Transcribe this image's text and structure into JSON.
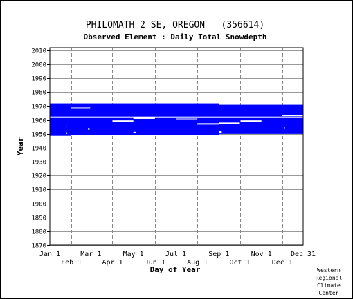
{
  "chart_data": {
    "type": "heatmap",
    "title": "PHILOMATH 2 SE, OREGON   (356614)",
    "subtitle": "Observed Element : Daily Total Snowdepth",
    "xlabel": "Day of Year",
    "ylabel": "Year",
    "xlim": [
      1,
      365
    ],
    "ylim": [
      1870,
      2012
    ],
    "yticks": [
      1870,
      1880,
      1890,
      1900,
      1910,
      1920,
      1930,
      1940,
      1950,
      1960,
      1970,
      1980,
      1990,
      2000,
      2010
    ],
    "xticks_upper": [
      {
        "label": "Jan 1",
        "day": 1
      },
      {
        "label": "Mar 1",
        "day": 60
      },
      {
        "label": "May 1",
        "day": 121
      },
      {
        "label": "Jul 1",
        "day": 182
      },
      {
        "label": "Sep 1",
        "day": 244
      },
      {
        "label": "Nov 1",
        "day": 305
      },
      {
        "label": "Dec 31",
        "day": 365
      }
    ],
    "xticks_lower": [
      {
        "label": "Feb 1",
        "day": 32
      },
      {
        "label": "Apr 1",
        "day": 91
      },
      {
        "label": "Jun 1",
        "day": 152
      },
      {
        "label": "Aug 1",
        "day": 213
      },
      {
        "label": "Oct 1",
        "day": 274
      },
      {
        "label": "Dec 1",
        "day": 335
      }
    ],
    "grid": true,
    "data_color": "#0000ff",
    "gap_color": "#ffffff",
    "period_of_record": {
      "start_year": 1949,
      "end_year": 1972
    },
    "data_blocks": [
      {
        "day_start": 1,
        "day_end": 244,
        "year_start": 1949,
        "year_end": 1972
      },
      {
        "day_start": 244,
        "day_end": 365,
        "year_start": 1950,
        "year_end": 1971
      },
      {
        "day_start": 1,
        "day_end": 31,
        "year_start": 1948.6,
        "year_end": 1949
      }
    ],
    "missing_segments": [
      {
        "year": 1968.6,
        "day_start": 31,
        "day_end": 59
      },
      {
        "year": 1962,
        "day_start": 1,
        "day_end": 365
      },
      {
        "year": 1960.6,
        "day_start": 182,
        "day_end": 213
      },
      {
        "year": 1961.4,
        "day_start": 121,
        "day_end": 152
      },
      {
        "year": 1959.3,
        "day_start": 91,
        "day_end": 121
      },
      {
        "year": 1959.3,
        "day_start": 275,
        "day_end": 305
      },
      {
        "year": 1957.2,
        "day_start": 213,
        "day_end": 244
      },
      {
        "year": 1957.7,
        "day_start": 244,
        "day_end": 274
      },
      {
        "year": 1963.3,
        "day_start": 335,
        "day_end": 365
      },
      {
        "year": 1951.4,
        "day_start": 244,
        "day_end": 248
      },
      {
        "year": 1951,
        "day_start": 121,
        "day_end": 125
      },
      {
        "year": 1950.6,
        "day_start": 24,
        "day_end": 26
      },
      {
        "year": 1953.5,
        "day_start": 56,
        "day_end": 58
      },
      {
        "year": 1954.2,
        "day_start": 338,
        "day_end": 339
      },
      {
        "year": 1955.4,
        "day_start": 24,
        "day_end": 25
      }
    ]
  },
  "footer": {
    "lines": [
      "Western",
      "Regional",
      "Climate",
      "Center"
    ]
  }
}
